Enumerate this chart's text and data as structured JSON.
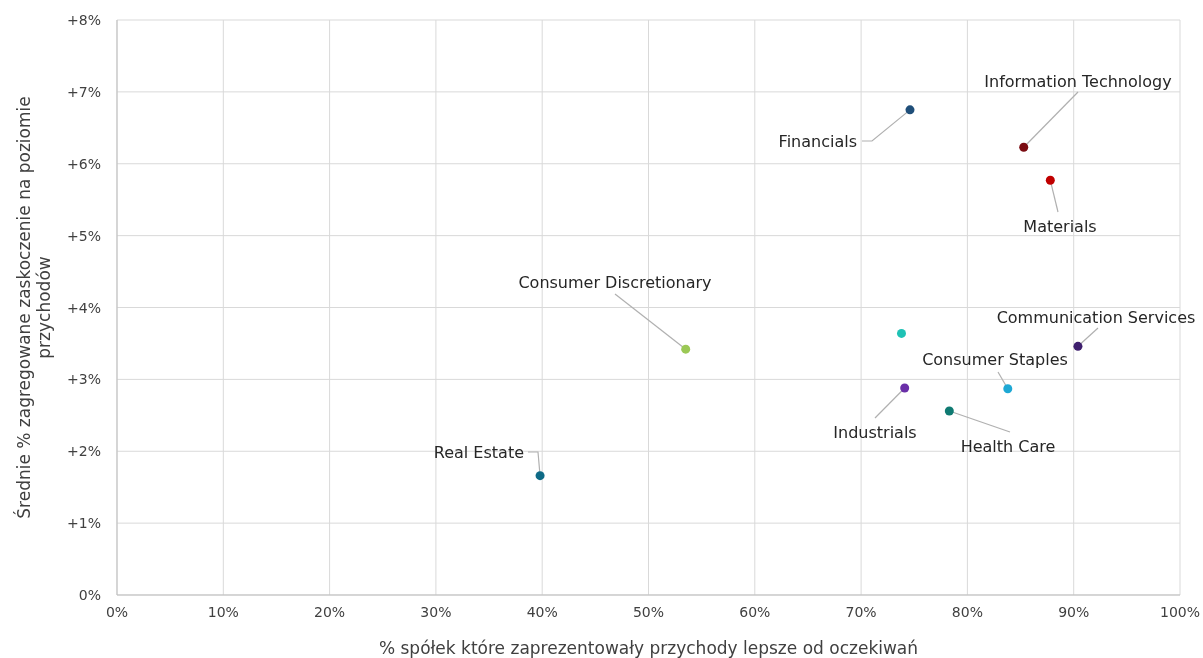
{
  "chart_data": {
    "type": "scatter",
    "xlabel": "% spółek które zaprezentowały przychody lepsze od oczekiwań",
    "ylabel": "Średnie % zagregowane zaskoczenie na poziomie przychodów",
    "xlim": [
      0,
      100
    ],
    "ylim": [
      0,
      8
    ],
    "xticks": [
      {
        "value": 0,
        "label": "0%"
      },
      {
        "value": 10,
        "label": "10%"
      },
      {
        "value": 20,
        "label": "20%"
      },
      {
        "value": 30,
        "label": "30%"
      },
      {
        "value": 40,
        "label": "40%"
      },
      {
        "value": 50,
        "label": "50%"
      },
      {
        "value": 60,
        "label": "60%"
      },
      {
        "value": 70,
        "label": "70%"
      },
      {
        "value": 80,
        "label": "80%"
      },
      {
        "value": 90,
        "label": "90%"
      },
      {
        "value": 100,
        "label": "100%"
      }
    ],
    "yticks": [
      {
        "value": 0,
        "label": "0%"
      },
      {
        "value": 1,
        "label": "+1%"
      },
      {
        "value": 2,
        "label": "+2%"
      },
      {
        "value": 3,
        "label": "+3%"
      },
      {
        "value": 4,
        "label": "+4%"
      },
      {
        "value": 5,
        "label": "+5%"
      },
      {
        "value": 6,
        "label": "+6%"
      },
      {
        "value": 7,
        "label": "+7%"
      },
      {
        "value": 8,
        "label": "+8%"
      }
    ],
    "grid": true,
    "marker": "circle",
    "series": [
      {
        "name": "Financials",
        "color": "#1f4e79",
        "x": [
          74.6
        ],
        "values": [
          6.75
        ]
      },
      {
        "name": "Information Technology",
        "color": "#7b0c12",
        "x": [
          85.3
        ],
        "values": [
          6.23
        ]
      },
      {
        "name": "Materials",
        "color": "#c00000",
        "x": [
          87.8
        ],
        "values": [
          5.77
        ]
      },
      {
        "color": "#1fc2b5",
        "x": [
          73.8
        ],
        "values": [
          3.64
        ]
      },
      {
        "name": "Consumer Discretionary",
        "color": "#9bc855",
        "x": [
          53.5
        ],
        "values": [
          3.42
        ]
      },
      {
        "name": "Communication Services",
        "color": "#3f1f6e",
        "x": [
          90.4
        ],
        "values": [
          3.46
        ]
      },
      {
        "name": "Consumer Staples",
        "color": "#1ea8d4",
        "x": [
          83.8
        ],
        "values": [
          2.87
        ]
      },
      {
        "name": "Industrials",
        "color": "#6a2fa8",
        "x": [
          74.1
        ],
        "values": [
          2.88
        ]
      },
      {
        "name": "Health Care",
        "color": "#0f7a72",
        "x": [
          78.3
        ],
        "values": [
          2.56
        ]
      },
      {
        "name": "Real Estate",
        "color": "#0e6a86",
        "x": [
          39.8
        ],
        "values": [
          1.66
        ]
      }
    ]
  }
}
